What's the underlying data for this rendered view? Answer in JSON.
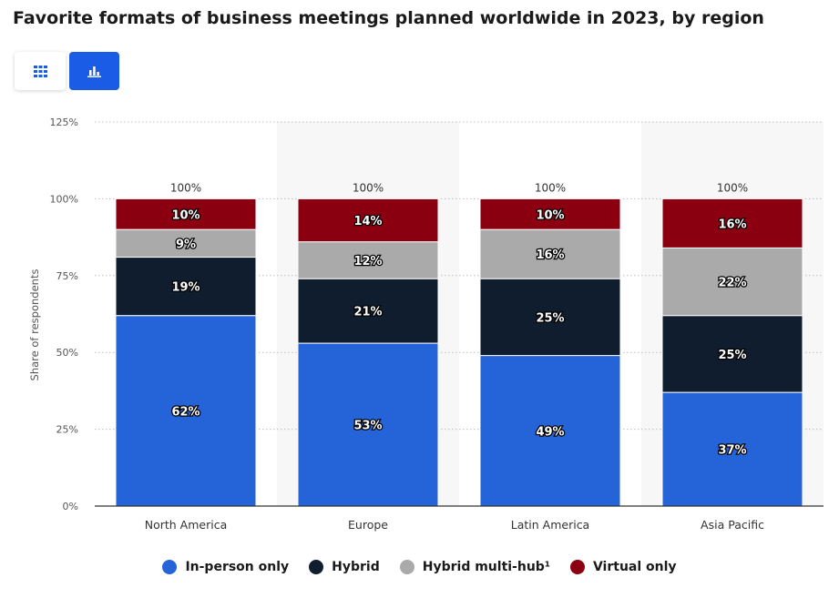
{
  "title": "Favorite formats of business meetings planned worldwide in 2023, by region",
  "toolbar": {
    "table_icon": "grid-icon",
    "chart_icon": "bar-chart-icon"
  },
  "chart_data": {
    "type": "bar",
    "stacked": true,
    "categories": [
      "North America",
      "Europe",
      "Latin America",
      "Asia Pacific"
    ],
    "series": [
      {
        "name": "In-person only",
        "color": "#2563d9",
        "values": [
          62,
          53,
          49,
          37
        ],
        "labels": [
          "62%",
          "53%",
          "49%",
          "37%"
        ]
      },
      {
        "name": "Hybrid",
        "color": "#0f1d2e",
        "values": [
          19,
          21,
          25,
          25
        ],
        "labels": [
          "19%",
          "21%",
          "25%",
          "25%"
        ]
      },
      {
        "name": "Hybrid multi-hub¹",
        "color": "#aaaaaa",
        "values": [
          9,
          12,
          16,
          22
        ],
        "labels": [
          "9%",
          "12%",
          "16%",
          "22%"
        ]
      },
      {
        "name": "Virtual only",
        "color": "#8b0010",
        "values": [
          10,
          14,
          10,
          16
        ],
        "labels": [
          "10%",
          "14%",
          "10%",
          "16%"
        ]
      }
    ],
    "totals": [
      "100%",
      "100%",
      "100%",
      "100%"
    ],
    "ylabel": "Share of respondents",
    "ylim": [
      0,
      125
    ],
    "yticks": [
      {
        "value": 0,
        "label": "0%"
      },
      {
        "value": 25,
        "label": "25%"
      },
      {
        "value": 50,
        "label": "50%"
      },
      {
        "value": 75,
        "label": "75%"
      },
      {
        "value": 100,
        "label": "100%"
      },
      {
        "value": 125,
        "label": "125%"
      }
    ],
    "grid": true,
    "legend_position": "bottom"
  }
}
